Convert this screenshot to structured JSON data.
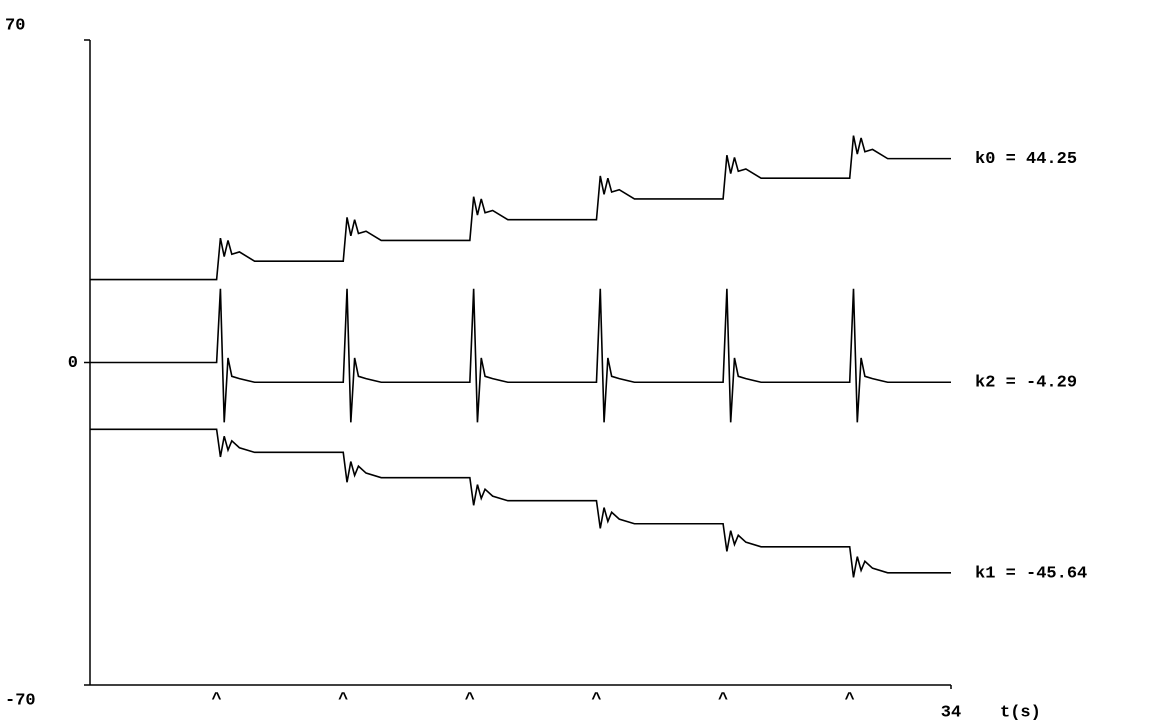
{
  "chart_data": {
    "type": "line",
    "x": [
      0,
      5,
      5.15,
      5.3,
      5.45,
      5.6,
      5.9,
      6.5,
      10,
      10.15,
      10.3,
      10.45,
      10.6,
      10.9,
      11.5,
      15,
      15.15,
      15.3,
      15.45,
      15.6,
      15.9,
      16.5,
      20,
      20.15,
      20.3,
      20.45,
      20.6,
      20.9,
      21.5,
      25,
      25.15,
      25.3,
      25.45,
      25.6,
      25.9,
      26.5,
      30,
      30.15,
      30.3,
      30.45,
      30.6,
      30.9,
      31.5,
      34
    ],
    "series": [
      {
        "name": "k0 = 44.25",
        "color": "#000000",
        "values": [
          18,
          18,
          27,
          23,
          26.5,
          23.5,
          24,
          22,
          22,
          31.5,
          27.5,
          31,
          28,
          28.5,
          26.5,
          26.5,
          36,
          32,
          35.5,
          32.5,
          33,
          31,
          31,
          40.5,
          36.5,
          40,
          37,
          37.5,
          35.5,
          35.5,
          45,
          41,
          44.5,
          41.5,
          42,
          40,
          40,
          49.25,
          45.25,
          48.75,
          45.75,
          46.25,
          44.25,
          44.25
        ]
      },
      {
        "name": "k2 = -4.29",
        "color": "#000000",
        "values": [
          0,
          0,
          16,
          -13,
          1,
          -3,
          -3.5,
          -4.29,
          -4.29,
          16,
          -13,
          1,
          -3,
          -3.5,
          -4.29,
          -4.29,
          16,
          -13,
          1,
          -3,
          -3.5,
          -4.29,
          -4.29,
          16,
          -13,
          1,
          -3,
          -3.5,
          -4.29,
          -4.29,
          16,
          -13,
          1,
          -3,
          -3.5,
          -4.29,
          -4.29,
          16,
          -13,
          1,
          -3,
          -3.5,
          -4.29,
          -4.29
        ]
      },
      {
        "name": "k1 = -45.64",
        "color": "#000000",
        "values": [
          -14.5,
          -14.5,
          -20.5,
          -16,
          -19,
          -17,
          -18.5,
          -19.5,
          -19.5,
          -26,
          -21.5,
          -24.5,
          -22.5,
          -24,
          -25,
          -25,
          -31,
          -26.5,
          -29.5,
          -27.5,
          -29,
          -30,
          -30,
          -36,
          -31.5,
          -34.5,
          -32.5,
          -34,
          -35,
          -35,
          -41,
          -36.5,
          -39.5,
          -37.5,
          -39,
          -40,
          -40,
          -46.64,
          -42.14,
          -45.14,
          -43.14,
          -44.64,
          -45.64,
          -45.64
        ]
      }
    ],
    "annotations": [
      {
        "text": "^",
        "x": 5
      },
      {
        "text": "^",
        "x": 10
      },
      {
        "text": "^",
        "x": 15
      },
      {
        "text": "^",
        "x": 20
      },
      {
        "text": "^",
        "x": 25
      },
      {
        "text": "^",
        "x": 30
      }
    ],
    "xlabel": "t(s)",
    "xlim": [
      0,
      34
    ],
    "xticks": [
      34
    ],
    "ylim": [
      -70,
      70
    ],
    "yticks": [
      -70,
      0,
      70
    ],
    "grid": false
  }
}
